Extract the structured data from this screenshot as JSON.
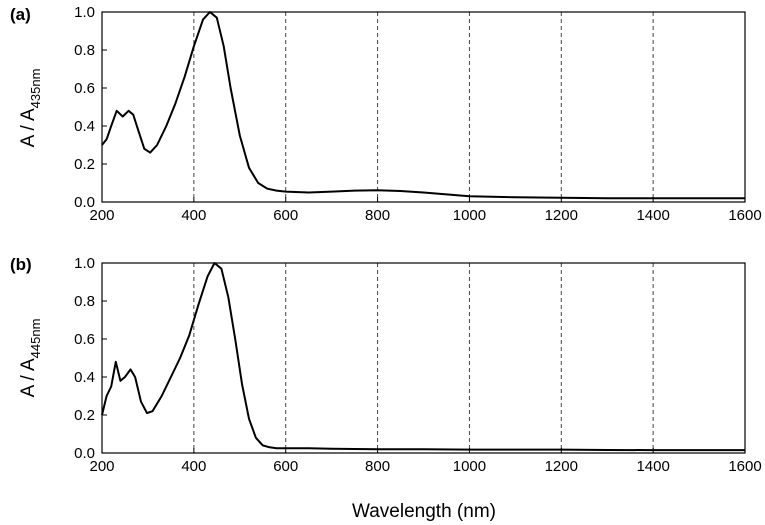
{
  "chart_data": [
    {
      "type": "line",
      "panel_label": "(a)",
      "ylabel": {
        "main": "A / A",
        "subscript": "435nm"
      },
      "xlim": [
        200,
        1600
      ],
      "ylim": [
        0,
        1.0
      ],
      "xticks": [
        200,
        400,
        600,
        800,
        1000,
        1200,
        1400,
        1600
      ],
      "yticks": [
        "0.0",
        "0.2",
        "0.4",
        "0.6",
        "0.8",
        "1.0"
      ],
      "vertical_dashed_lines": [
        400,
        600,
        800,
        1000,
        1200,
        1400
      ],
      "series": [
        {
          "x": [
            200,
            210,
            220,
            232,
            245,
            258,
            268,
            280,
            292,
            305,
            320,
            340,
            360,
            380,
            400,
            420,
            435,
            450,
            465,
            480,
            500,
            520,
            540,
            560,
            580,
            600,
            650,
            700,
            750,
            800,
            850,
            900,
            950,
            1000,
            1100,
            1200,
            1300,
            1400,
            1500,
            1600
          ],
          "y": [
            0.3,
            0.33,
            0.4,
            0.48,
            0.45,
            0.48,
            0.46,
            0.37,
            0.28,
            0.26,
            0.3,
            0.4,
            0.52,
            0.66,
            0.82,
            0.96,
            1.0,
            0.97,
            0.82,
            0.6,
            0.35,
            0.18,
            0.1,
            0.07,
            0.06,
            0.055,
            0.05,
            0.055,
            0.06,
            0.062,
            0.058,
            0.05,
            0.04,
            0.03,
            0.025,
            0.022,
            0.02,
            0.02,
            0.02,
            0.02
          ]
        }
      ]
    },
    {
      "type": "line",
      "panel_label": "(b)",
      "ylabel": {
        "main": "A / A",
        "subscript": "445nm"
      },
      "xlim": [
        200,
        1600
      ],
      "ylim": [
        0,
        1.0
      ],
      "xticks": [
        200,
        400,
        600,
        800,
        1000,
        1200,
        1400,
        1600
      ],
      "yticks": [
        "0.0",
        "0.2",
        "0.4",
        "0.6",
        "0.8",
        "1.0"
      ],
      "vertical_dashed_lines": [
        400,
        600,
        800,
        1000,
        1200,
        1400
      ],
      "series": [
        {
          "x": [
            200,
            210,
            220,
            230,
            240,
            250,
            262,
            272,
            285,
            298,
            310,
            330,
            350,
            370,
            390,
            410,
            430,
            445,
            460,
            475,
            490,
            505,
            520,
            535,
            550,
            565,
            580,
            600,
            650,
            700,
            800,
            900,
            1000,
            1100,
            1200,
            1300,
            1400,
            1500,
            1600
          ],
          "y": [
            0.2,
            0.3,
            0.35,
            0.48,
            0.38,
            0.4,
            0.44,
            0.4,
            0.27,
            0.21,
            0.22,
            0.3,
            0.4,
            0.5,
            0.62,
            0.78,
            0.93,
            1.0,
            0.97,
            0.82,
            0.6,
            0.36,
            0.18,
            0.08,
            0.04,
            0.03,
            0.025,
            0.025,
            0.025,
            0.022,
            0.02,
            0.02,
            0.018,
            0.018,
            0.018,
            0.016,
            0.015,
            0.015,
            0.015
          ]
        }
      ]
    }
  ],
  "xlabel": "Wavelength (nm)"
}
